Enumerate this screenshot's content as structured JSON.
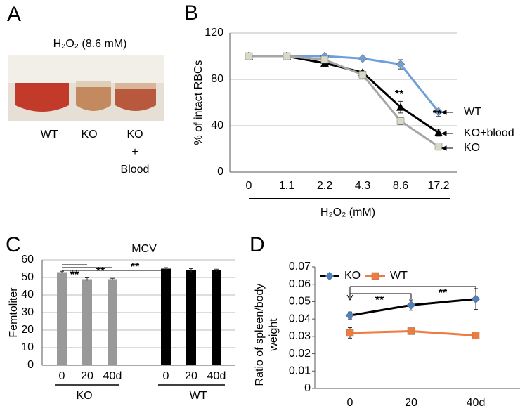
{
  "panel_letters": [
    "A",
    "B",
    "C",
    "D"
  ],
  "photo": {
    "title": "H₂O₂ (8.6 mM)",
    "labels": [
      "WT",
      "KO",
      "KO",
      "+",
      "Blood"
    ]
  },
  "chart_data": [
    {
      "type": "line",
      "categories": [
        "0",
        "1.1",
        "2.2",
        "4.3",
        "8.6",
        "17.2"
      ],
      "ylabel": "% of intact RBCs",
      "xlabel": "H₂O₂ (mM)",
      "ylim": [
        0,
        120
      ],
      "yticks": [
        0,
        40,
        80,
        120
      ],
      "grid": true,
      "series": [
        {
          "name": "WT",
          "color": "#6f9fd8",
          "line_color": "#6f9fd8",
          "marker": "diamond",
          "values": [
            100,
            100,
            100,
            98,
            93,
            52
          ],
          "errors": [
            1,
            1,
            1,
            1,
            4,
            4
          ]
        },
        {
          "name": "KO+blood",
          "color": "#000000",
          "line_color": "#000000",
          "marker": "triangle",
          "values": [
            100,
            100,
            94,
            86,
            56,
            34
          ],
          "errors": [
            2,
            2,
            3,
            2,
            5,
            3
          ]
        },
        {
          "name": "KO",
          "color": "#d9d9c8",
          "line_color": "#a6a6a6",
          "marker": "square",
          "values": [
            100,
            100,
            97,
            84,
            44,
            22
          ],
          "errors": [
            2,
            2,
            2,
            2,
            3,
            3
          ]
        }
      ],
      "annotations": [
        "**",
        "**"
      ]
    },
    {
      "type": "bar",
      "title": "MCV",
      "ylabel": "Femtoliter",
      "categories": [
        "0",
        "20",
        "40d",
        "0",
        "20",
        "40d"
      ],
      "groups": [
        "KO",
        "WT"
      ],
      "ylim": [
        0,
        60
      ],
      "yticks": [
        0,
        10,
        20,
        30,
        40,
        50,
        60
      ],
      "grid": true,
      "values": [
        53,
        49,
        49,
        55,
        54,
        54
      ],
      "errors": [
        0.5,
        0.8,
        0.5,
        0.6,
        1,
        0.7
      ],
      "colors": [
        "#999999",
        "#999999",
        "#999999",
        "#000000",
        "#000000",
        "#000000"
      ],
      "annotations": [
        "**",
        "**",
        "**"
      ]
    },
    {
      "type": "line",
      "categories": [
        "0",
        "20",
        "40d"
      ],
      "ylabel_lines": [
        "Ratio of spleen/body",
        "weight"
      ],
      "ylim": [
        0,
        0.07
      ],
      "yticks": [
        0,
        0.01,
        0.02,
        0.03,
        0.04,
        0.05,
        0.06,
        0.07
      ],
      "grid": false,
      "series": [
        {
          "name": "KO",
          "color": "#4f81bd",
          "line_color": "#000000",
          "marker": "diamond",
          "values": [
            0.042,
            0.048,
            0.0515
          ],
          "errors": [
            0.002,
            0.003,
            0.006
          ]
        },
        {
          "name": "WT",
          "color": "#f07b3f",
          "line_color": "#f07b3f",
          "marker": "square",
          "values": [
            0.032,
            0.033,
            0.0305
          ],
          "errors": [
            0.003,
            0.001,
            0.0015
          ]
        }
      ],
      "annotations": [
        "**",
        "**"
      ]
    }
  ]
}
